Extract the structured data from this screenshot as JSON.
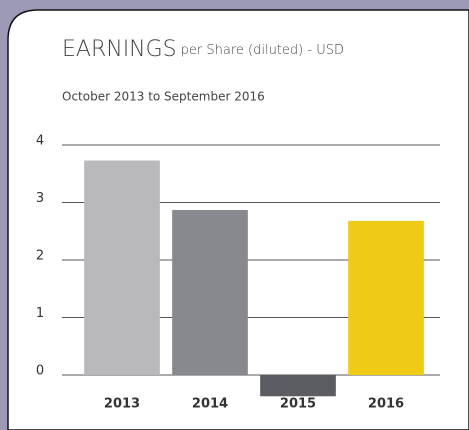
{
  "chart_data": {
    "type": "bar",
    "title": "EARNINGS",
    "title_suffix": "per Share (diluted) - USD",
    "subtitle": "October 2013 to September 2016",
    "categories": [
      "2013",
      "2014",
      "2015",
      "2016"
    ],
    "values": [
      3.73,
      2.87,
      -0.37,
      2.68
    ],
    "colors": [
      "#b9b8bd",
      "#87898e",
      "#5b5d62",
      "#efcb15"
    ],
    "ylim": [
      -0.4,
      4
    ],
    "yticks": [
      0,
      1,
      2,
      3,
      4
    ],
    "grid": true
  }
}
